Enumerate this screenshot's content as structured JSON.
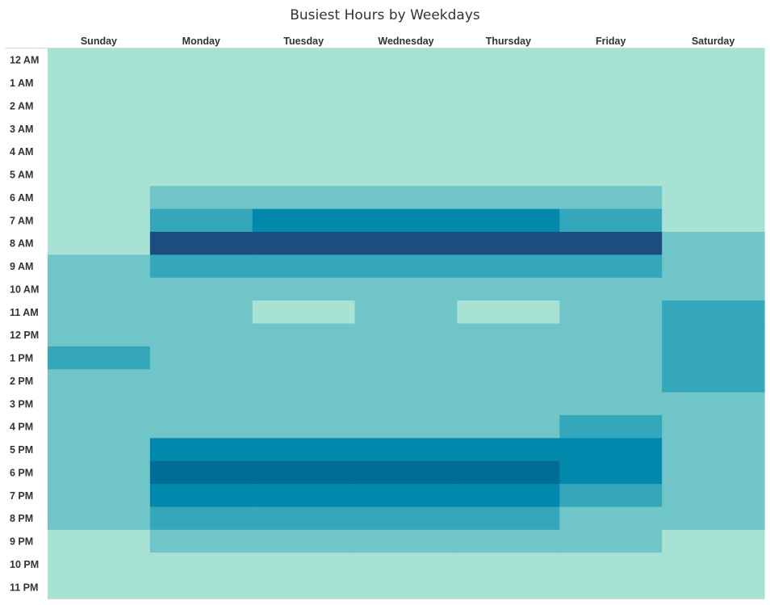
{
  "chart_data": {
    "type": "heatmap",
    "title": "Busiest Hours by Weekdays",
    "columns": [
      "Sunday",
      "Monday",
      "Tuesday",
      "Wednesday",
      "Thursday",
      "Friday",
      "Saturday"
    ],
    "rows": [
      "12 AM",
      "1 AM",
      "2 AM",
      "3 AM",
      "4 AM",
      "5 AM",
      "6 AM",
      "7 AM",
      "8 AM",
      "9 AM",
      "10 AM",
      "11 AM",
      "12 PM",
      "1 PM",
      "2 PM",
      "3 PM",
      "4 PM",
      "5 PM",
      "6 PM",
      "7 PM",
      "8 PM",
      "9 PM",
      "10 PM",
      "11 PM"
    ],
    "intensity_levels": 6,
    "color_scale": [
      "#a8e2d5",
      "#70c5c8",
      "#35a7bb",
      "#0089ad",
      "#006d96",
      "#1b4d7e"
    ],
    "values": [
      [
        0,
        0,
        0,
        0,
        0,
        0,
        0
      ],
      [
        0,
        0,
        0,
        0,
        0,
        0,
        0
      ],
      [
        0,
        0,
        0,
        0,
        0,
        0,
        0
      ],
      [
        0,
        0,
        0,
        0,
        0,
        0,
        0
      ],
      [
        0,
        0,
        0,
        0,
        0,
        0,
        0
      ],
      [
        0,
        0,
        0,
        0,
        0,
        0,
        0
      ],
      [
        0,
        1,
        1,
        1,
        1,
        1,
        0
      ],
      [
        0,
        2,
        3,
        3,
        3,
        2,
        0
      ],
      [
        0,
        5,
        5,
        5,
        5,
        5,
        1
      ],
      [
        1,
        2,
        2,
        2,
        2,
        2,
        1
      ],
      [
        1,
        1,
        1,
        1,
        1,
        1,
        1
      ],
      [
        1,
        1,
        0,
        1,
        0,
        1,
        2
      ],
      [
        1,
        1,
        1,
        1,
        1,
        1,
        2
      ],
      [
        2,
        1,
        1,
        1,
        1,
        1,
        2
      ],
      [
        1,
        1,
        1,
        1,
        1,
        1,
        2
      ],
      [
        1,
        1,
        1,
        1,
        1,
        1,
        1
      ],
      [
        1,
        1,
        1,
        1,
        1,
        2,
        1
      ],
      [
        1,
        3,
        3,
        3,
        3,
        3,
        1
      ],
      [
        1,
        4,
        4,
        4,
        4,
        3,
        1
      ],
      [
        1,
        3,
        3,
        3,
        3,
        2,
        1
      ],
      [
        1,
        2,
        2,
        2,
        2,
        1,
        1
      ],
      [
        0,
        1,
        1,
        1,
        1,
        1,
        0
      ],
      [
        0,
        0,
        0,
        0,
        0,
        0,
        0
      ],
      [
        0,
        0,
        0,
        0,
        0,
        0,
        0
      ]
    ],
    "legend": "none",
    "grid": false
  }
}
